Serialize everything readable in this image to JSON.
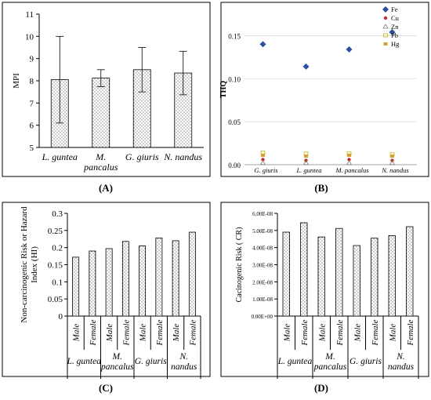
{
  "colors": {
    "frame": "#000000",
    "grid": "#d9d9d9",
    "bar_fill": "#ffffff",
    "dot": "#555555",
    "fe": "#2e4fa0",
    "cu": "#c0302a",
    "zn": "#7d7d7d",
    "pb": "#c9c230",
    "hg": "#d6a030"
  },
  "chart_data": [
    {
      "id": "A",
      "type": "bar",
      "panel_label": "(A)",
      "title": "",
      "xlabel": "",
      "ylabel": "MPI",
      "ylim": [
        5,
        11
      ],
      "yticks": [
        "5",
        "6",
        "7",
        "8",
        "9",
        "10",
        "11"
      ],
      "grid": false,
      "error_bars": true,
      "categories": [
        [
          "L. guntea"
        ],
        [
          "M.",
          "pancalus"
        ],
        [
          "G. giuris"
        ],
        [
          "N. nandus"
        ]
      ],
      "values": [
        8.05,
        8.12,
        8.5,
        8.35
      ],
      "errors": [
        1.95,
        0.38,
        1.0,
        0.98
      ]
    },
    {
      "id": "B",
      "type": "scatter",
      "panel_label": "(B)",
      "title": "",
      "xlabel": "",
      "ylabel": "THQ",
      "ylim": [
        0,
        0.175
      ],
      "yticks": [
        "0.00",
        "0.05",
        "0.10",
        "0.15"
      ],
      "grid": true,
      "legend": "top-right",
      "categories": [
        "G. giuris",
        "L. guntea",
        "M. pancalus",
        "N. nandus"
      ],
      "series": [
        {
          "name": "Fe",
          "marker": "diamond",
          "values": [
            0.14,
            0.114,
            0.134,
            0.154
          ]
        },
        {
          "name": "Cu",
          "marker": "circle",
          "values": [
            0.006,
            0.005,
            0.006,
            0.005
          ]
        },
        {
          "name": "Zn",
          "marker": "triangle",
          "values": [
            0.002,
            0.002,
            0.002,
            0.002
          ]
        },
        {
          "name": "Pb",
          "marker": "square-open",
          "values": [
            0.014,
            0.013,
            0.013,
            0.012
          ]
        },
        {
          "name": "Hg",
          "marker": "square",
          "values": [
            0.011,
            0.01,
            0.011,
            0.01
          ]
        }
      ]
    },
    {
      "id": "C",
      "type": "bar",
      "panel_label": "(C)",
      "title": "",
      "xlabel": "",
      "ylabel": [
        "Non-carcinogenic Risk or Hazard",
        "Index (HI)"
      ],
      "ylim": [
        0,
        0.3
      ],
      "yticks": [
        "0",
        "0.05",
        "0.1",
        "0.15",
        "0.2",
        "0.25",
        "0.3"
      ],
      "grid": false,
      "subcategories": [
        "Male",
        "Female"
      ],
      "groups": [
        [
          "L. guntea"
        ],
        [
          "M.",
          "pancalus"
        ],
        [
          "G. giuris"
        ],
        [
          "N.",
          "nandus"
        ]
      ],
      "values": [
        0.172,
        0.19,
        0.197,
        0.218,
        0.205,
        0.228,
        0.22,
        0.245
      ]
    },
    {
      "id": "D",
      "type": "bar",
      "panel_label": "(D)",
      "title": "",
      "xlabel": "",
      "ylabel": "Cacinogenic Risk ( CR)",
      "ylim": [
        0,
        6e-08
      ],
      "yticks": [
        "0.00E+00",
        "1.00E-08",
        "2.00E-08",
        "3.00E-08",
        "4.00E-08",
        "5.00E-08",
        "6.00E-08"
      ],
      "grid": false,
      "subcategories": [
        "Male",
        "Female"
      ],
      "groups": [
        [
          "L. guntea"
        ],
        [
          "M.",
          "pancalus"
        ],
        [
          "G. giuris"
        ],
        [
          "N.",
          "nandus"
        ]
      ],
      "values": [
        4.9e-08,
        5.45e-08,
        4.62e-08,
        5.12e-08,
        4.12e-08,
        4.55e-08,
        4.7e-08,
        5.22e-08
      ]
    }
  ]
}
